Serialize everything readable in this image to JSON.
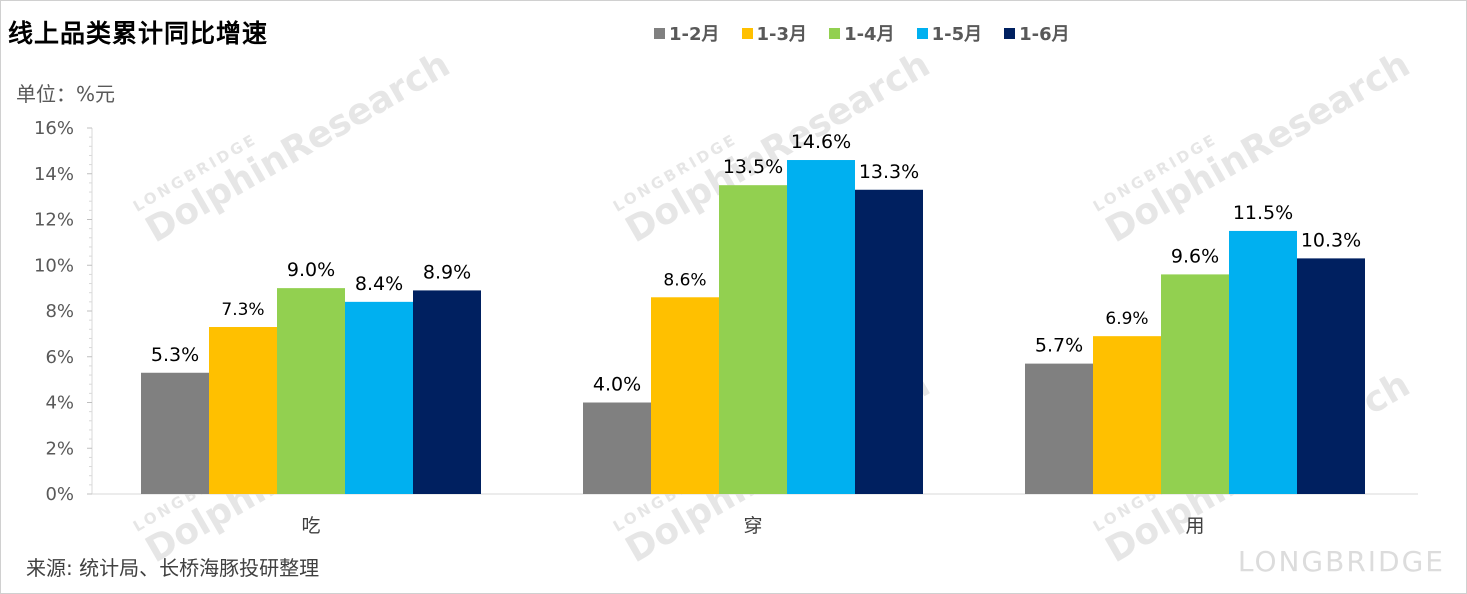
{
  "header": {
    "title": "线上品类累计同比增速",
    "unit": "单位：%元",
    "source": "来源: 统计局、长桥海豚投研整理"
  },
  "watermark": {
    "brand": "LONGBRIDGE",
    "name": "DolphinResearch"
  },
  "colors": {
    "1-2月": "#808080",
    "1-3月": "#FFC000",
    "1-4月": "#92D050",
    "1-5月": "#00B0F0",
    "1-6月": "#002060"
  },
  "chart_data": {
    "type": "bar",
    "title": "线上品类累计同比增速",
    "ylabel": "单位：%元",
    "categories": [
      "吃",
      "穿",
      "用"
    ],
    "series": [
      {
        "name": "1-2月",
        "values": [
          5.3,
          4.0,
          5.7
        ]
      },
      {
        "name": "1-3月",
        "values": [
          7.3,
          8.6,
          6.9
        ]
      },
      {
        "name": "1-4月",
        "values": [
          9.0,
          13.5,
          9.6
        ]
      },
      {
        "name": "1-5月",
        "values": [
          8.4,
          14.6,
          11.5
        ]
      },
      {
        "name": "1-6月",
        "values": [
          8.9,
          13.3,
          10.3
        ]
      }
    ],
    "ylim": [
      0,
      16
    ],
    "yticks": [
      "0%",
      "2%",
      "4%",
      "6%",
      "8%",
      "10%",
      "12%",
      "14%",
      "16%"
    ],
    "legend": "top",
    "grid": false
  }
}
